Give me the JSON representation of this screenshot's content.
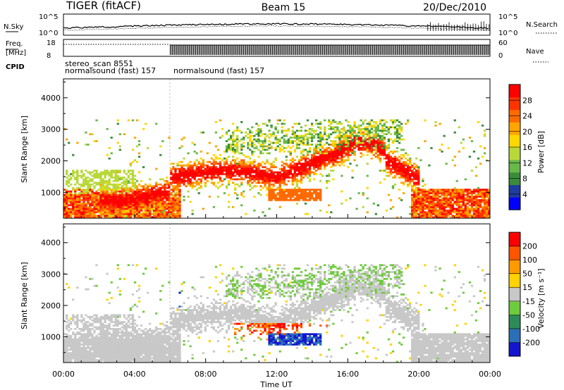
{
  "header": {
    "title": "TIGER (fitACF)",
    "beam": "Beam 15",
    "date": "20/Dec/2010"
  },
  "status_panels": {
    "nsky": {
      "label": "N.Sky",
      "tick_labels": [
        "10^5",
        "10^0"
      ]
    },
    "nsearch": {
      "label": "N.Search",
      "tick_labels": [
        "10^5",
        "10^0"
      ]
    },
    "freq": {
      "label_line1": "Freq.",
      "label_line2": "[MHz]",
      "tick_labels": [
        "18",
        "8"
      ]
    },
    "nave": {
      "label": "Nave",
      "tick_labels": [
        "60",
        "0"
      ]
    },
    "cpid": {
      "label": "CPID",
      "line1": "stereo_scan 8551",
      "line2a": "normalsound (fast) 157",
      "line2b": "normalsound (fast) 157"
    }
  },
  "chart_data": [
    {
      "type": "heatmap",
      "quantity": "Power",
      "ylabel": "Slant Range [km]",
      "ylim": [
        180,
        4600
      ],
      "yticks": [
        1000,
        2000,
        3000,
        4000
      ],
      "xlim": [
        0,
        24
      ],
      "colorbar": {
        "label": "Power [dB]",
        "tick_labels": [
          "28",
          "24",
          "20",
          "16",
          "12",
          "8",
          "4"
        ],
        "colors": [
          "#0000ff",
          "#1e3c9e",
          "#3a8c3a",
          "#69b84a",
          "#b8d83a",
          "#ffd700",
          "#ffa500",
          "#ff6a00",
          "#ff3300",
          "#ff0000"
        ]
      }
    },
    {
      "type": "heatmap",
      "quantity": "Velocity",
      "ylabel": "Slant Range [km]",
      "ylim": [
        180,
        4600
      ],
      "yticks": [
        1000,
        2000,
        3000,
        4000
      ],
      "xlim": [
        0,
        24
      ],
      "xlabel": "Time UT",
      "xtick_labels": [
        "00:00",
        "04:00",
        "08:00",
        "12:00",
        "16:00",
        "20:00",
        "00:00"
      ],
      "colorbar": {
        "label": "Velocity [m s⁻¹]",
        "tick_labels": [
          "200",
          "100",
          "50",
          "15",
          "-15",
          "-50",
          "-100",
          "-200"
        ],
        "colors": [
          "#1515d0",
          "#2b6fb8",
          "#2e8b57",
          "#6ecb3c",
          "#c8c8c8",
          "#ffd200",
          "#ff9900",
          "#ff5500",
          "#ff0000"
        ]
      }
    }
  ]
}
